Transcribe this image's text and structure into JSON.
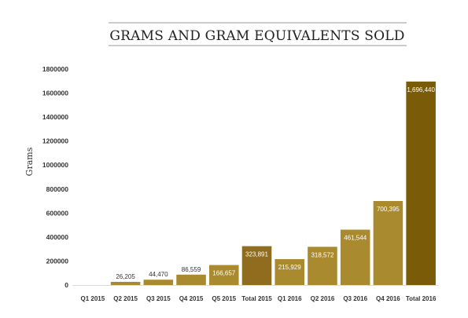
{
  "chart_data": {
    "type": "bar",
    "title": "GRAMS AND GRAM EQUIVALENTS SOLD",
    "ylabel": "Grams",
    "xlabel": "",
    "ylim": [
      0,
      1800000
    ],
    "yticks": [
      0,
      200000,
      400000,
      600000,
      800000,
      1000000,
      1200000,
      1400000,
      1600000,
      1800000
    ],
    "ytick_labels": [
      "0",
      "200000",
      "400000",
      "600000",
      "800000",
      "1000000",
      "1200000",
      "1400000",
      "1600000",
      "1800000"
    ],
    "categories": [
      "Q1 2015",
      "Q2 2015",
      "Q3 2015",
      "Q4 2015",
      "Q5 2015",
      "Total 2015",
      "Q1 2016",
      "Q2 2016",
      "Q3 2016",
      "Q4 2016",
      "Total 2016"
    ],
    "values": [
      0,
      26205,
      44470,
      86559,
      166657,
      323891,
      215929,
      318572,
      461544,
      700395,
      1696440
    ],
    "data_labels": [
      "",
      "26,205",
      "44,470",
      "86,559",
      "166,657",
      "323,891",
      "215,929",
      "318,572",
      "461,544",
      "700,395",
      "1,696,440"
    ],
    "colors": {
      "quarter": "#AA8A2E",
      "total_2015": "#8F6C1E",
      "total_2016": "#7A5C08",
      "label_inside": "#ffffff",
      "label_outside": "#333333"
    },
    "grid": false,
    "legend": "none"
  }
}
